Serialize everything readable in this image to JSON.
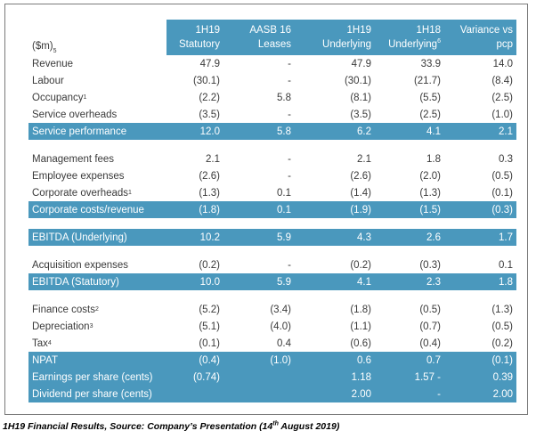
{
  "table": {
    "unit_label": "($m)",
    "unit_sup": "5",
    "headers": [
      {
        "line1": "1H19",
        "line2": "Statutory",
        "sup": ""
      },
      {
        "line1": "AASB 16",
        "line2": "Leases",
        "sup": ""
      },
      {
        "line1": "1H19",
        "line2": "Underlying",
        "sup": ""
      },
      {
        "line1": "1H18",
        "line2": "Underlying",
        "sup": "6"
      },
      {
        "line1": "Variance vs",
        "line2": "pcp",
        "sup": ""
      }
    ],
    "groups": [
      [
        {
          "label": "Revenue",
          "sup": "",
          "values": [
            "47.9",
            "-",
            "47.9",
            "33.9",
            "14.0"
          ]
        },
        {
          "label": "Labour",
          "sup": "",
          "values": [
            "(30.1)",
            "-",
            "(30.1)",
            "(21.7)",
            "(8.4)"
          ]
        },
        {
          "label": "Occupancy",
          "sup": "1",
          "values": [
            "(2.2)",
            "5.8",
            "(8.1)",
            "(5.5)",
            "(2.5)"
          ]
        },
        {
          "label": "Service overheads",
          "sup": "",
          "values": [
            "(3.5)",
            "-",
            "(3.5)",
            "(2.5)",
            "(1.0)"
          ]
        },
        {
          "label": "Service performance",
          "sup": "",
          "values": [
            "12.0",
            "5.8",
            "6.2",
            "4.1",
            "2.1"
          ],
          "hl": true
        }
      ],
      [
        {
          "label": "Management fees",
          "sup": "",
          "values": [
            "2.1",
            "-",
            "2.1",
            "1.8",
            "0.3"
          ]
        },
        {
          "label": "Employee expenses",
          "sup": "",
          "values": [
            "(2.6)",
            "-",
            "(2.6)",
            "(2.0)",
            "(0.5)"
          ]
        },
        {
          "label": "Corporate overheads",
          "sup": "1",
          "values": [
            "(1.3)",
            "0.1",
            "(1.4)",
            "(1.3)",
            "(0.1)"
          ]
        },
        {
          "label": "Corporate costs/revenue",
          "sup": "",
          "values": [
            "(1.8)",
            "0.1",
            "(1.9)",
            "(1.5)",
            "(0.3)"
          ],
          "hl": true
        }
      ],
      [
        {
          "label": "EBITDA (Underlying)",
          "sup": "",
          "values": [
            "10.2",
            "5.9",
            "4.3",
            "2.6",
            "1.7"
          ],
          "hl": true
        }
      ],
      [
        {
          "label": "Acquisition expenses",
          "sup": "",
          "values": [
            "(0.2)",
            "-",
            "(0.2)",
            "(0.3)",
            "0.1"
          ]
        },
        {
          "label": "EBITDA (Statutory)",
          "sup": "",
          "values": [
            "10.0",
            "5.9",
            "4.1",
            "2.3",
            "1.8"
          ],
          "hl": true
        }
      ],
      [
        {
          "label": "Finance costs",
          "sup": "2",
          "values": [
            "(5.2)",
            "(3.4)",
            "(1.8)",
            "(0.5)",
            "(1.3)"
          ]
        },
        {
          "label": "Depreciation",
          "sup": "3",
          "values": [
            "(5.1)",
            "(4.0)",
            "(1.1)",
            "(0.7)",
            "(0.5)"
          ]
        },
        {
          "label": "Tax",
          "sup": "4",
          "values": [
            "(0.1)",
            "0.4",
            "(0.6)",
            "(0.4)",
            "(0.2)"
          ]
        },
        {
          "label": "NPAT",
          "sup": "",
          "values": [
            "(0.4)",
            "(1.0)",
            "0.6",
            "0.7",
            "(0.1)"
          ],
          "hl": true
        },
        {
          "label": "Earnings per share (cents)",
          "sup": "",
          "values": [
            "(0.74)",
            "",
            "1.18",
            "1.57 -",
            "0.39"
          ],
          "hl": true
        },
        {
          "label": "Dividend per share (cents)",
          "sup": "",
          "values": [
            "",
            "",
            "2.00",
            "-",
            "2.00"
          ],
          "hl": true
        }
      ]
    ]
  },
  "caption": {
    "prefix": "1H19 Financial Results, Source: Company’s Presentation (14",
    "sup": "th",
    "suffix": " August 2019)"
  }
}
